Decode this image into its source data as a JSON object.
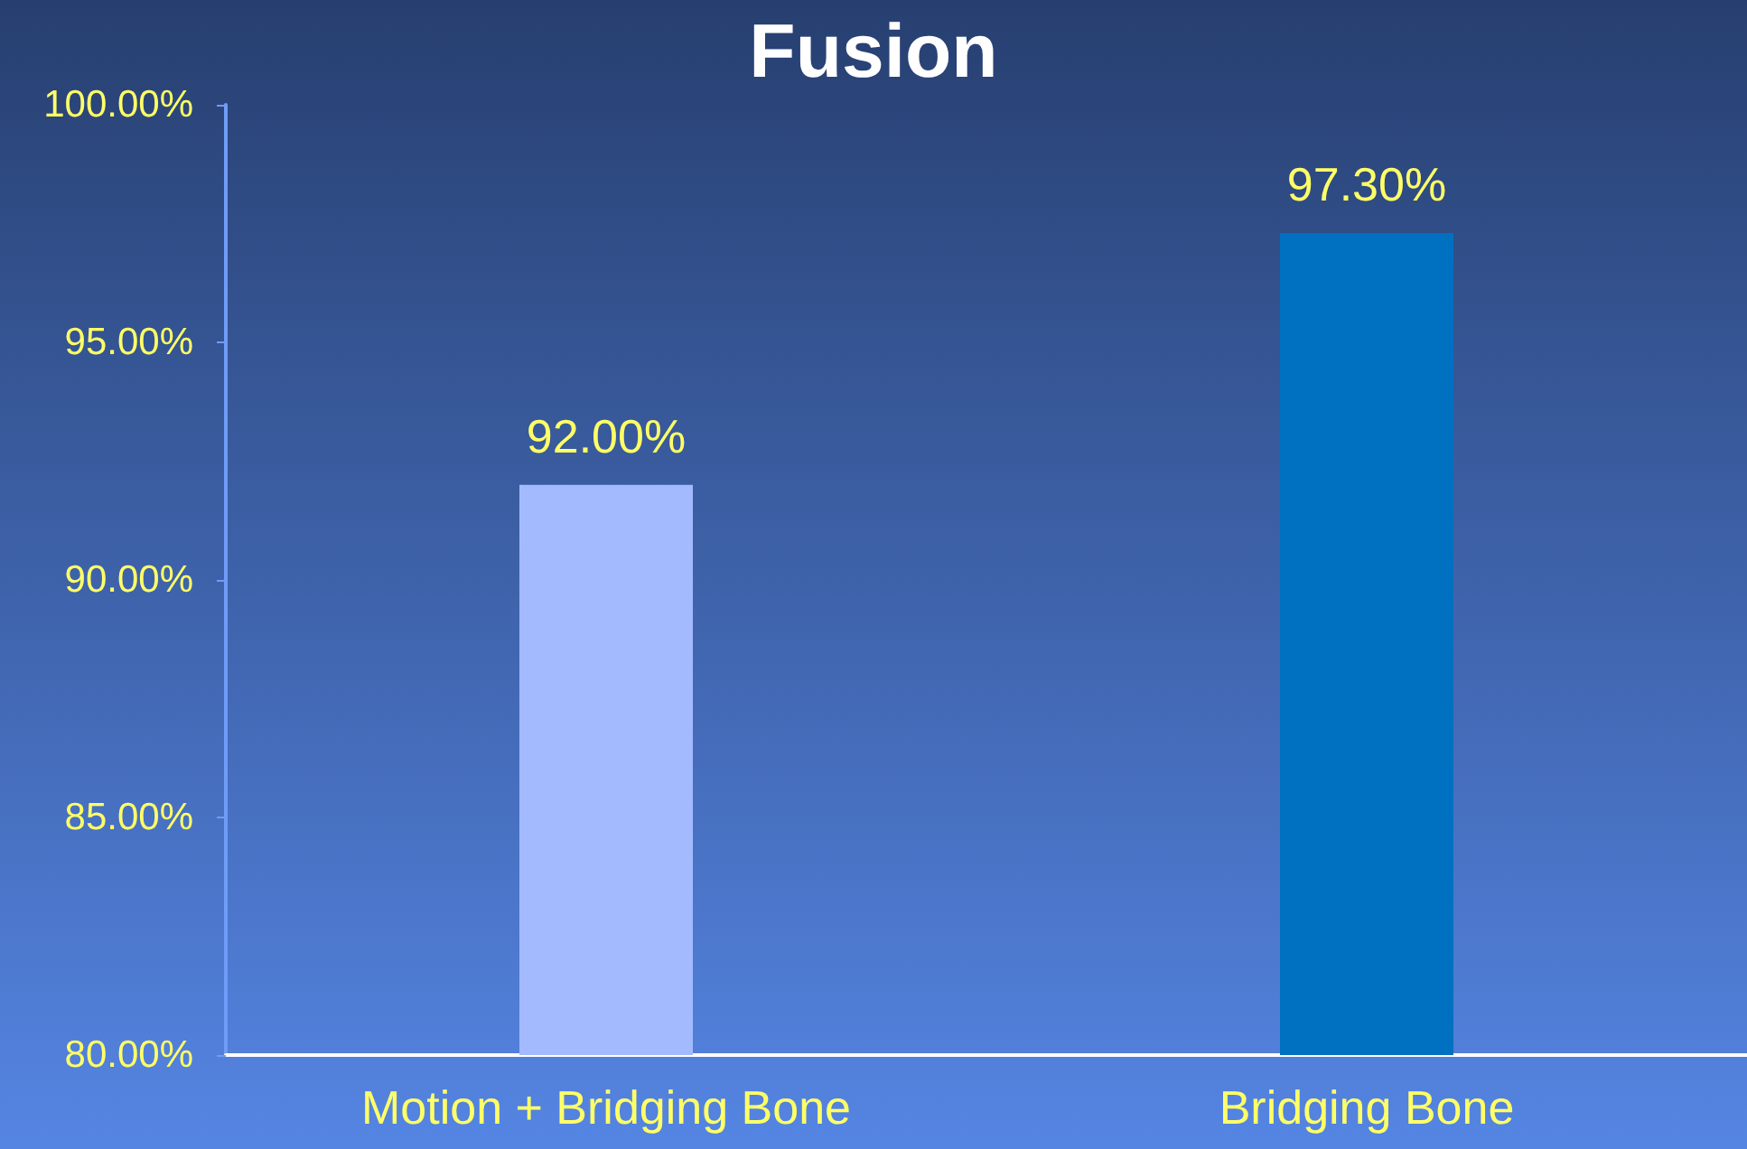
{
  "chart_data": {
    "type": "bar",
    "title": "Fusion",
    "categories": [
      "Motion + Bridging Bone",
      "Bridging Bone"
    ],
    "values": [
      92,
      97.3
    ],
    "colors": [
      "#a4baff",
      "#0070c0"
    ],
    "value_labels": [
      "92.00%",
      "97.30%"
    ],
    "ylim": [
      80,
      100
    ],
    "yticks": [
      {
        "value": 80,
        "label": "80.00%"
      },
      {
        "value": 85,
        "label": "85.00%"
      },
      {
        "value": 90,
        "label": "90.00%"
      },
      {
        "value": 95,
        "label": "95.00%"
      },
      {
        "value": 100,
        "label": "100.00%"
      }
    ],
    "relative": false
  }
}
